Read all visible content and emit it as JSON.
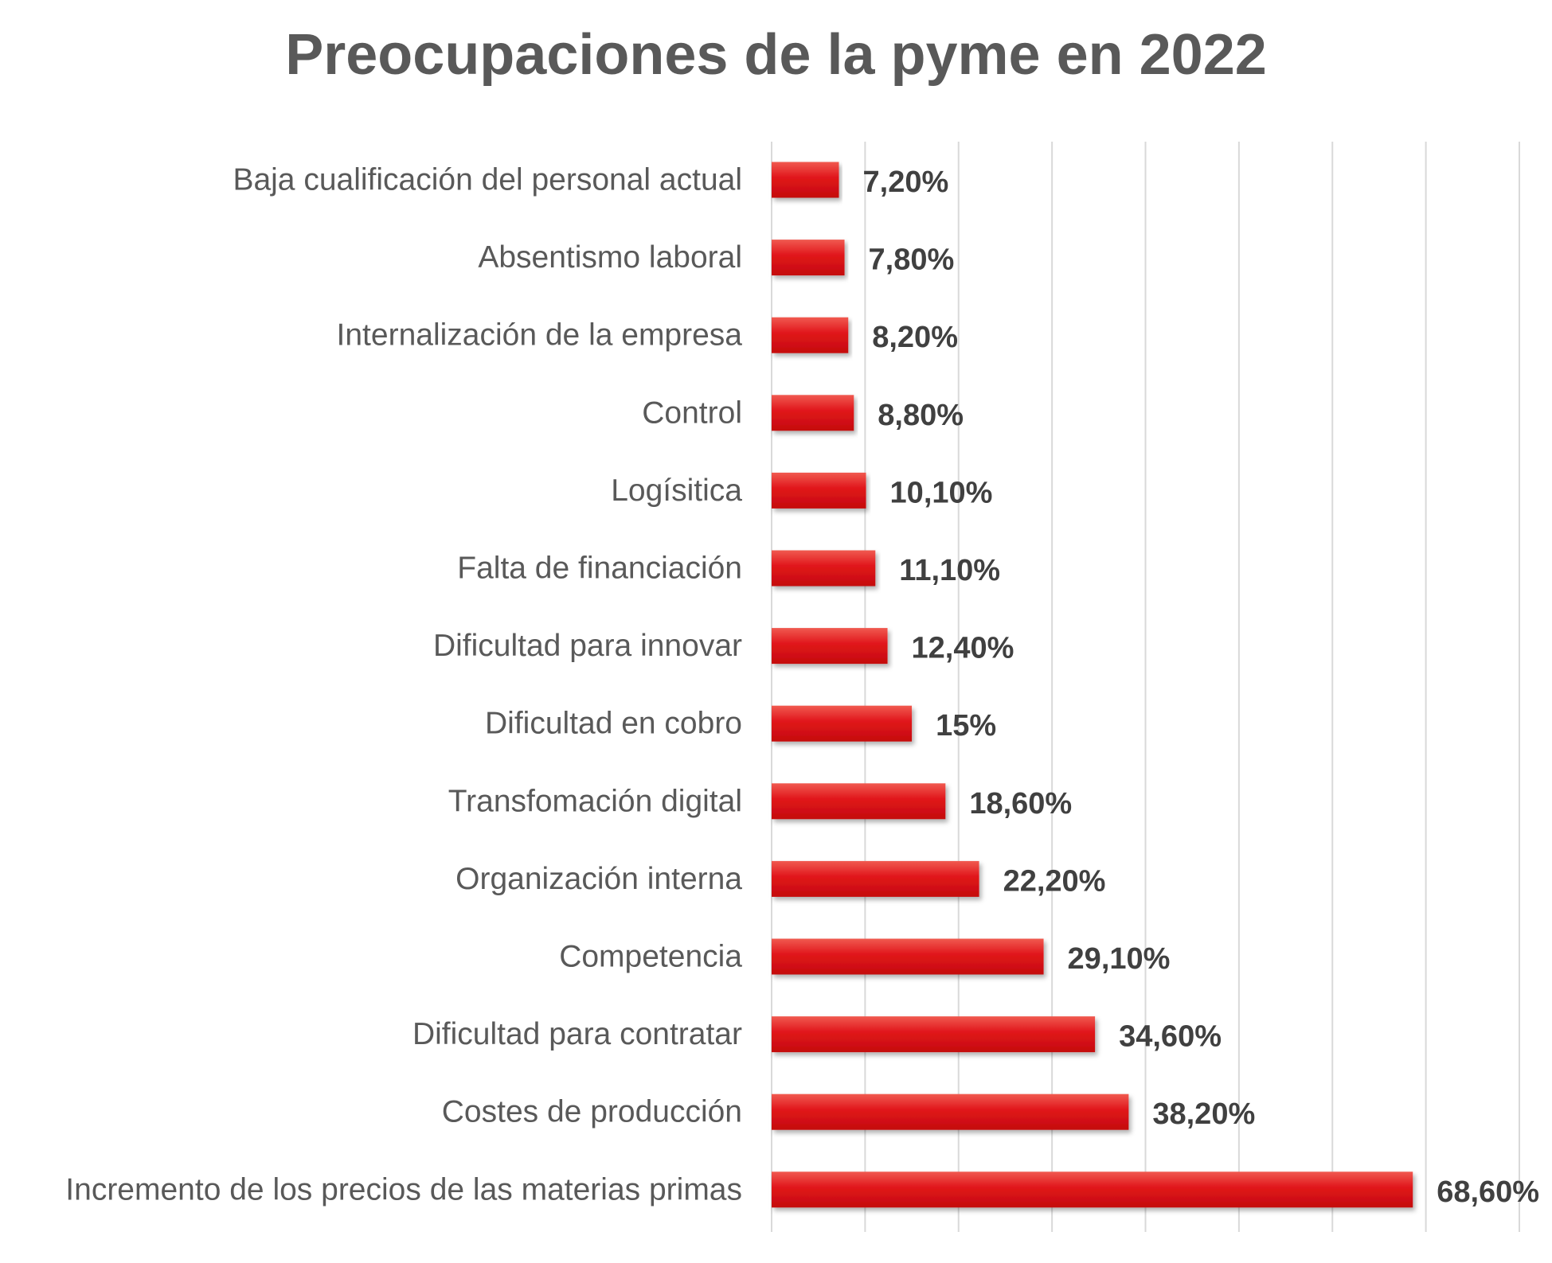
{
  "chart_data": {
    "type": "bar",
    "orientation": "horizontal",
    "title": "Preocupaciones de la pyme en 2022",
    "xlabel": "",
    "ylabel": "",
    "categories": [
      "Baja cualificación del personal actual",
      "Absentismo laboral",
      "Internalización de la empresa",
      "Control",
      "Logísitica",
      "Falta de financiación",
      "Dificultad para innovar",
      "Dificultad en cobro",
      "Transfomación digital",
      "Organización interna",
      "Competencia",
      "Dificultad para contratar",
      "Costes de producción",
      "Incremento de los precios de las materias primas"
    ],
    "values": [
      7.2,
      7.8,
      8.2,
      8.8,
      10.1,
      11.1,
      12.4,
      15,
      18.6,
      22.2,
      29.1,
      34.6,
      38.2,
      68.6
    ],
    "data_labels": [
      "7,20%",
      "7,80%",
      "8,20%",
      "8,80%",
      "10,10%",
      "11,10%",
      "12,40%",
      "15%",
      "18,60%",
      "22,20%",
      "29,10%",
      "34,60%",
      "38,20%",
      "68,60%"
    ],
    "xlim": [
      0,
      80
    ],
    "grid": true,
    "tick_labels_visible": false,
    "legend": "none",
    "colors": {
      "bar": "#e0141a",
      "bar_light": "#f05a50",
      "bar_dark": "#c40e0e",
      "grid": "#d9d9d9",
      "text": "#595959",
      "value_text": "#404040"
    }
  }
}
